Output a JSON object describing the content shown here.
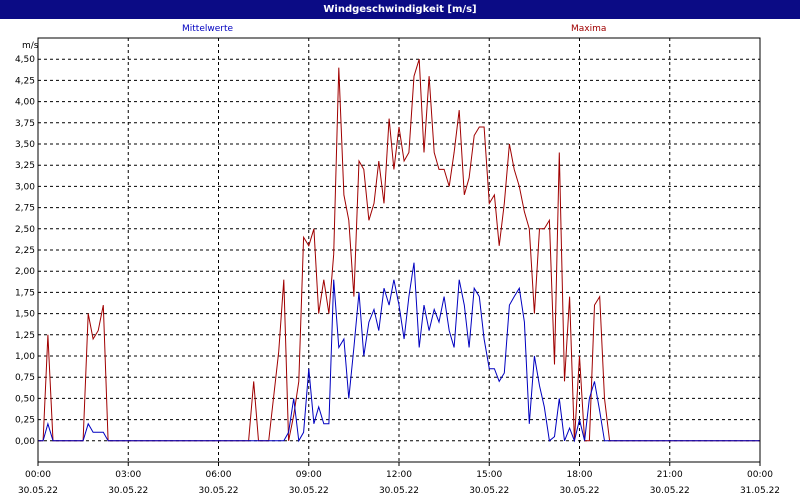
{
  "window": {
    "title": "Windgeschwindigkeit [m/s]"
  },
  "colors": {
    "titlebar": "#0b0b85",
    "mean_series": "#0000c0",
    "max_series": "#a00000"
  },
  "chart_data": {
    "type": "line",
    "title": "Windgeschwindigkeit [m/s]",
    "ylabel": "m/s",
    "ylim": [
      -0.25,
      4.75
    ],
    "xlim": [
      0,
      24
    ],
    "grid": true,
    "legend_placement": "top",
    "yticks": [
      "0,00",
      "0,25",
      "0,50",
      "0,75",
      "1,00",
      "1,25",
      "1,50",
      "1,75",
      "2,00",
      "2,25",
      "2,50",
      "2,75",
      "3,00",
      "3,25",
      "3,50",
      "3,75",
      "4,00",
      "4,25",
      "4,50"
    ],
    "xticks": [
      {
        "time": "00:00",
        "date": "30.05.22"
      },
      {
        "time": "03:00",
        "date": "30.05.22"
      },
      {
        "time": "06:00",
        "date": "30.05.22"
      },
      {
        "time": "09:00",
        "date": "30.05.22"
      },
      {
        "time": "12:00",
        "date": "30.05.22"
      },
      {
        "time": "15:00",
        "date": "30.05.22"
      },
      {
        "time": "18:00",
        "date": "30.05.22"
      },
      {
        "time": "21:00",
        "date": "30.05.22"
      },
      {
        "time": "00:00",
        "date": "31.05.22"
      }
    ],
    "series": [
      {
        "name": "Mittelwerte",
        "color": "#0000c0",
        "x": [
          0,
          0.17,
          0.33,
          0.5,
          1.5,
          1.67,
          1.83,
          2.0,
          2.17,
          2.33,
          8.17,
          8.33,
          8.5,
          8.67,
          8.83,
          9.0,
          9.17,
          9.33,
          9.5,
          9.67,
          9.83,
          10.0,
          10.17,
          10.33,
          10.5,
          10.67,
          10.83,
          11.0,
          11.17,
          11.33,
          11.5,
          11.67,
          11.83,
          12.0,
          12.17,
          12.33,
          12.5,
          12.67,
          12.83,
          13.0,
          13.17,
          13.33,
          13.5,
          13.67,
          13.83,
          14.0,
          14.17,
          14.33,
          14.5,
          14.67,
          14.83,
          15.0,
          15.17,
          15.33,
          15.5,
          15.67,
          15.83,
          16.0,
          16.17,
          16.33,
          16.5,
          16.67,
          16.83,
          17.0,
          17.17,
          17.33,
          17.5,
          17.67,
          17.83,
          18.0,
          18.17,
          18.33,
          18.5,
          18.67,
          18.83,
          19.0,
          19.17,
          19.33,
          24
        ],
        "y": [
          0,
          0,
          0.2,
          0,
          0,
          0.2,
          0.1,
          0.1,
          0.1,
          0,
          0,
          0.1,
          0.5,
          0,
          0.1,
          0.85,
          0.2,
          0.4,
          0.2,
          0.2,
          1.9,
          1.1,
          1.2,
          0.5,
          1.1,
          1.75,
          1.0,
          1.4,
          1.55,
          1.3,
          1.8,
          1.6,
          1.9,
          1.6,
          1.2,
          1.7,
          2.1,
          1.1,
          1.6,
          1.3,
          1.55,
          1.4,
          1.7,
          1.3,
          1.1,
          1.9,
          1.6,
          1.1,
          1.8,
          1.7,
          1.2,
          0.85,
          0.85,
          0.7,
          0.8,
          1.6,
          1.7,
          1.8,
          1.4,
          0.2,
          1.0,
          0.65,
          0.4,
          0.0,
          0.05,
          0.5,
          0.0,
          0.15,
          0.0,
          0.25,
          0.0,
          0.5,
          0.7,
          0.35,
          0.0,
          0.0,
          0.0,
          0.0,
          0
        ]
      },
      {
        "name": "Maxima",
        "color": "#a00000",
        "x": [
          0,
          0.17,
          0.33,
          0.5,
          1.5,
          1.67,
          1.83,
          2.0,
          2.17,
          2.33,
          7.0,
          7.17,
          7.33,
          7.67,
          8.0,
          8.17,
          8.33,
          8.5,
          8.67,
          8.83,
          9.0,
          9.17,
          9.33,
          9.5,
          9.67,
          9.83,
          10.0,
          10.17,
          10.33,
          10.5,
          10.67,
          10.83,
          11.0,
          11.17,
          11.33,
          11.5,
          11.67,
          11.83,
          12.0,
          12.17,
          12.33,
          12.5,
          12.67,
          12.83,
          13.0,
          13.17,
          13.33,
          13.5,
          13.67,
          13.83,
          14.0,
          14.17,
          14.33,
          14.5,
          14.67,
          14.83,
          15.0,
          15.17,
          15.33,
          15.5,
          15.67,
          15.83,
          16.0,
          16.17,
          16.33,
          16.5,
          16.67,
          16.83,
          17.0,
          17.17,
          17.33,
          17.5,
          17.67,
          17.83,
          18.0,
          18.17,
          18.33,
          18.5,
          18.67,
          18.83,
          19.0,
          19.17,
          19.33,
          24
        ],
        "y": [
          0,
          0,
          1.25,
          0,
          0,
          1.5,
          1.2,
          1.3,
          1.6,
          0,
          0,
          0.7,
          0,
          0,
          1.05,
          1.9,
          0,
          0.3,
          0.7,
          2.4,
          2.3,
          2.5,
          1.5,
          1.9,
          1.5,
          2.2,
          4.4,
          2.9,
          2.6,
          1.7,
          3.3,
          3.2,
          2.6,
          2.8,
          3.3,
          2.8,
          3.8,
          3.2,
          3.7,
          3.3,
          3.4,
          4.3,
          4.5,
          3.4,
          4.3,
          3.4,
          3.2,
          3.2,
          3.0,
          3.4,
          3.9,
          2.9,
          3.1,
          3.6,
          3.7,
          3.7,
          2.8,
          2.9,
          2.3,
          2.8,
          3.5,
          3.2,
          3.0,
          2.7,
          2.5,
          1.5,
          2.5,
          2.5,
          2.6,
          0.9,
          3.4,
          0.7,
          1.7,
          0.0,
          1.0,
          0.0,
          0.0,
          1.6,
          1.7,
          0.5,
          0.0,
          0.0,
          0.0,
          0
        ]
      }
    ]
  }
}
